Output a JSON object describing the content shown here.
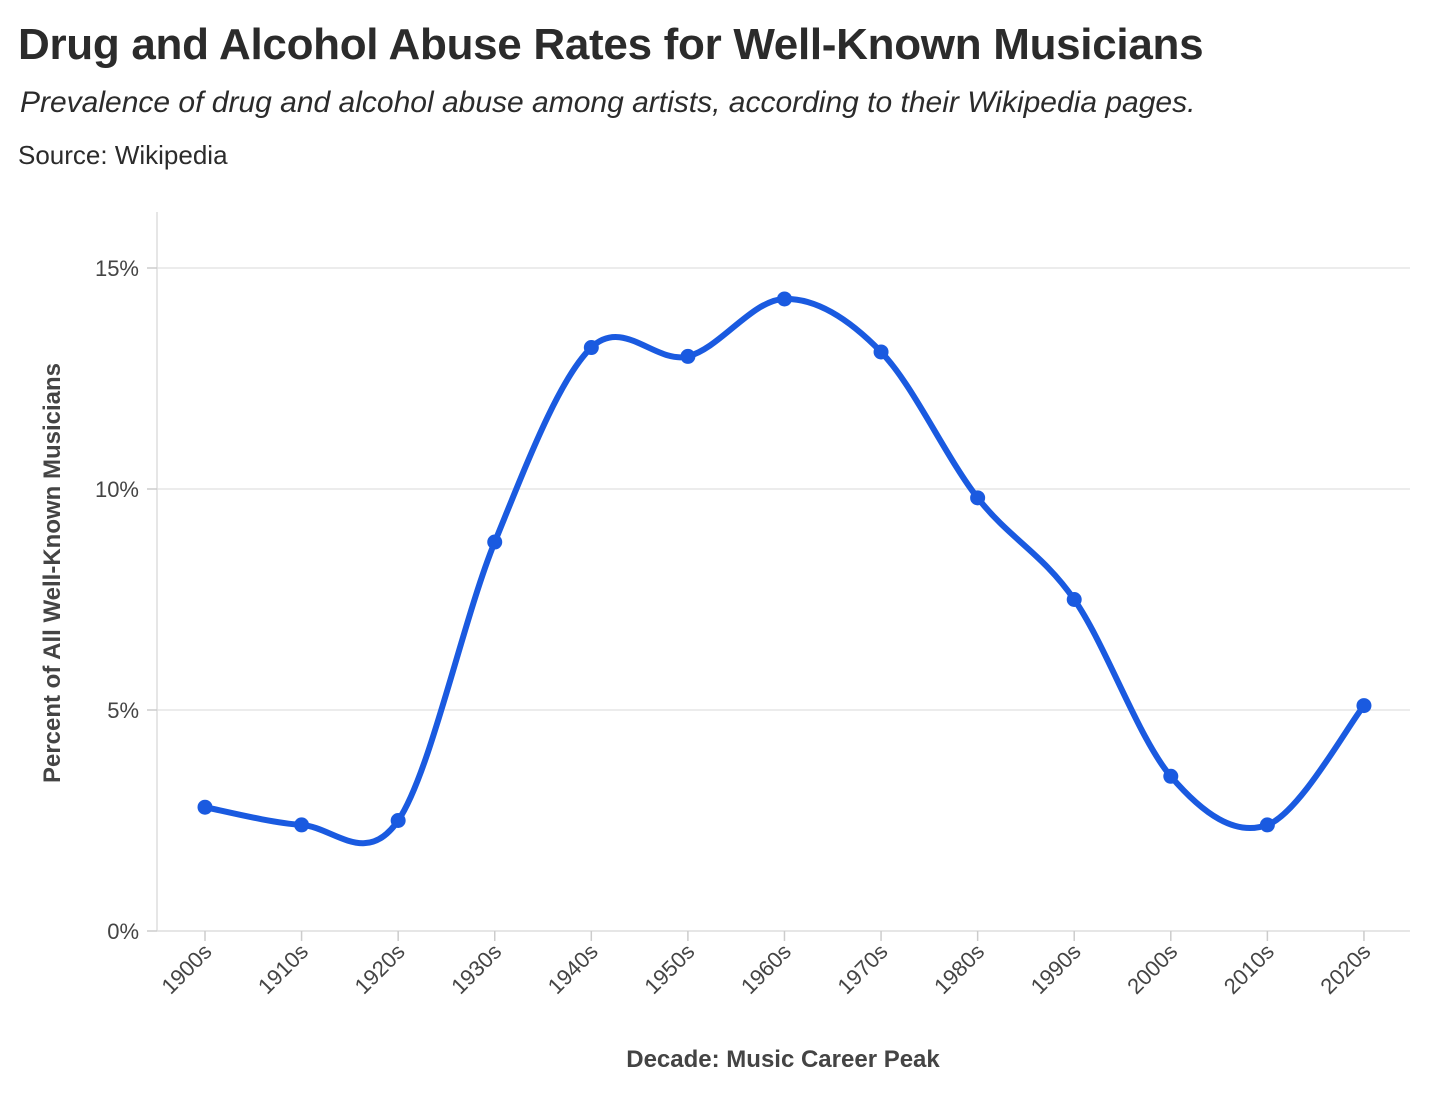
{
  "title": "Drug and Alcohol Abuse Rates for Well-Known Musicians",
  "subtitle": "Prevalence of drug and alcohol abuse among artists, according to their Wikipedia pages.",
  "source": "Source: Wikipedia",
  "chart_data": {
    "type": "line",
    "title": "Drug and Alcohol Abuse Rates for Well-Known Musicians",
    "subtitle": "Prevalence of drug and alcohol abuse among artists, according to their Wikipedia pages.",
    "xlabel": "Decade: Music Career Peak",
    "ylabel": "Percent of All Well-Known Musicians",
    "categories": [
      "1900s",
      "1910s",
      "1920s",
      "1930s",
      "1940s",
      "1950s",
      "1960s",
      "1970s",
      "1980s",
      "1990s",
      "2000s",
      "2010s",
      "2020s"
    ],
    "series": [
      {
        "values": [
          2.8,
          2.4,
          2.5,
          8.8,
          13.2,
          13.0,
          14.3,
          13.1,
          9.8,
          7.5,
          3.5,
          2.4,
          5.1
        ],
        "color": "#1a5ae0"
      }
    ],
    "ylim": [
      0,
      16.2
    ],
    "yticks": [
      0,
      5,
      10,
      15
    ],
    "ytick_labels": [
      "0%",
      "5%",
      "10%",
      "15%"
    ],
    "grid": true,
    "smooth": true,
    "markers": true
  }
}
